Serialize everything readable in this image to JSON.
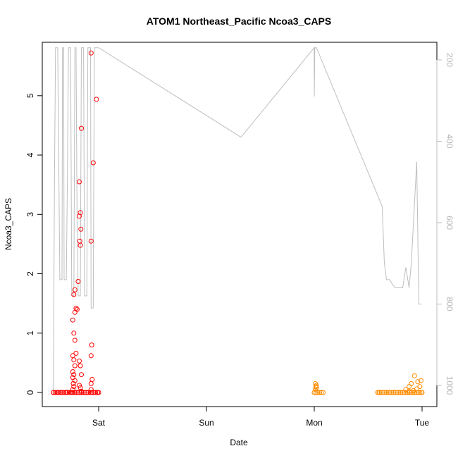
{
  "chart_data": {
    "type": "scatter",
    "title": "ATOM1 Northeast_Pacific Ncoa3_CAPS",
    "xlabel": "Date",
    "ylabel": "Ncoa3_CAPS",
    "x_ticks": [
      "Sat",
      "Sun",
      "Mon",
      "Tue"
    ],
    "ylim": [
      0,
      5.9
    ],
    "y_ticks": [
      "0",
      "1",
      "2",
      "3",
      "4",
      "5"
    ],
    "right_axis": {
      "ylim": [
        1020,
        170
      ],
      "inverted": true,
      "ticks": [
        "200",
        "400",
        "600",
        "800",
        "1000"
      ],
      "color": "#bebebe"
    },
    "series": [
      {
        "color": "#ff0000",
        "marker": "open-circle",
        "x": [
          -0.42,
          -0.38,
          -0.3,
          -0.25,
          -0.24,
          -0.23,
          -0.235,
          -0.22,
          -0.24,
          -0.23,
          -0.24,
          -0.22,
          -0.23,
          -0.24,
          -0.21,
          -0.22,
          -0.23,
          -0.24,
          -0.22,
          -0.2,
          -0.21,
          -0.23,
          -0.22,
          -0.19,
          -0.17,
          -0.175,
          -0.18,
          -0.17,
          -0.18,
          -0.16,
          -0.17,
          -0.18,
          -0.16,
          -0.17,
          -0.18,
          -0.165,
          -0.16,
          -0.07,
          -0.065,
          -0.07,
          -0.07,
          -0.06,
          -0.07,
          -0.065,
          -0.07,
          -0.05,
          -0.02,
          -0.01,
          0.0
        ],
        "y": [
          0,
          0,
          0,
          0,
          0.05,
          0.1,
          0.15,
          0.2,
          0.25,
          0.3,
          0.35,
          0.45,
          0.55,
          0.62,
          0.66,
          0.88,
          1.0,
          1.22,
          1.35,
          1.4,
          1.42,
          1.65,
          1.73,
          1.87,
          2.48,
          2.55,
          2.97,
          3.03,
          3.55,
          0.02,
          0.08,
          0.12,
          0.3,
          0.45,
          0.53,
          2.75,
          4.45,
          5.72,
          0,
          0.05,
          0.15,
          0.22,
          0.62,
          0.8,
          2.55,
          3.87,
          4.94,
          0,
          0
        ]
      },
      {
        "color": "#ff8c00",
        "marker": "open-circle",
        "x": [
          1.0,
          1.01,
          1.02,
          1.015,
          1.02,
          1.01,
          1.6,
          1.7,
          1.8,
          1.85,
          1.88,
          1.9,
          1.92,
          1.95,
          1.98,
          1.99,
          2.0,
          1.88,
          1.93,
          1.96
        ],
        "y": [
          0,
          0.05,
          0.08,
          0.1,
          0.12,
          0.15,
          0,
          0,
          0,
          0.05,
          0.1,
          0.15,
          0.03,
          0.06,
          0.1,
          0.2,
          0,
          0.02,
          0.28,
          0.18
        ]
      }
    ],
    "depth_line": {
      "color": "#bebebe",
      "x": [
        -0.42,
        -0.41,
        -0.4,
        -0.39,
        -0.38,
        -0.36,
        -0.35,
        -0.34,
        -0.335,
        -0.33,
        -0.325,
        -0.32,
        -0.31,
        -0.3,
        -0.29,
        -0.28,
        -0.27,
        -0.26,
        -0.25,
        -0.24,
        -0.23,
        -0.22,
        -0.215,
        -0.21,
        -0.2,
        -0.19,
        -0.18,
        -0.17,
        -0.16,
        -0.15,
        -0.14,
        -0.13,
        -0.12,
        -0.11,
        -0.1,
        -0.09,
        -0.08,
        -0.075,
        -0.07,
        -0.06,
        -0.05,
        -0.04,
        -0.03,
        -0.02,
        -0.01,
        0.0,
        0.32,
        1.0,
        1.0,
        1.005,
        1.01,
        1.012,
        1.015,
        1.02,
        1.63,
        1.65,
        1.66,
        1.67,
        1.7,
        1.72,
        1.75,
        1.8,
        1.82,
        1.85,
        1.88,
        1.9,
        1.95,
        1.97,
        2.0
      ],
      "y": [
        1020,
        500,
        170,
        170,
        170,
        740,
        740,
        740,
        170,
        170,
        170,
        740,
        740,
        740,
        500,
        170,
        170,
        170,
        780,
        780,
        780,
        170,
        170,
        170,
        600,
        780,
        780,
        780,
        170,
        170,
        170,
        780,
        780,
        780,
        170,
        170,
        170,
        170,
        810,
        810,
        810,
        170,
        170,
        170,
        170,
        170,
        390,
        170,
        290,
        170,
        170,
        170,
        170,
        170,
        560,
        700,
        720,
        740,
        740,
        750,
        760,
        760,
        760,
        710,
        760,
        700,
        450,
        800,
        800
      ]
    }
  }
}
